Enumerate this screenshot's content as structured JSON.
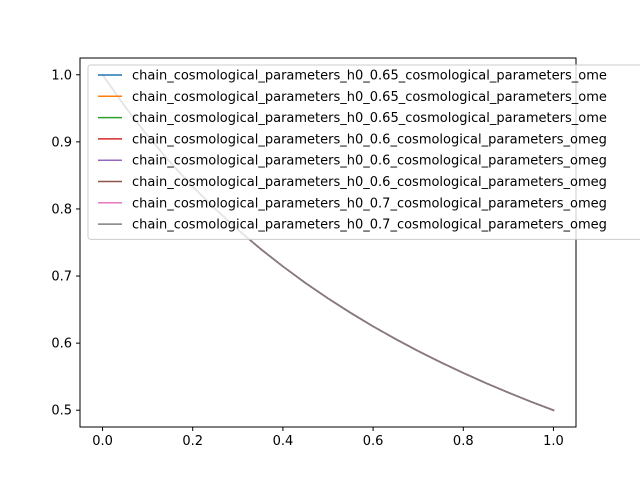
{
  "chart_data": {
    "type": "line",
    "title": "",
    "xlabel": "",
    "ylabel": "",
    "xlim": [
      -0.05,
      1.05
    ],
    "ylim": [
      0.475,
      1.025
    ],
    "grid": false,
    "legend_position": "upper right (overflowing right edge)",
    "x_ticks": [
      "0.0",
      "0.2",
      "0.4",
      "0.6",
      "0.8",
      "1.0"
    ],
    "y_ticks": [
      "0.5",
      "0.6",
      "0.7",
      "0.8",
      "0.9",
      "1.0"
    ],
    "x": [
      0.0,
      0.05,
      0.1,
      0.15,
      0.2,
      0.25,
      0.3,
      0.35,
      0.4,
      0.45,
      0.5,
      0.55,
      0.6,
      0.65,
      0.7,
      0.75,
      0.8,
      0.85,
      0.9,
      0.95,
      1.0
    ],
    "series": [
      {
        "name": "chain_cosmological_parameters_h0_0.65_cosmological_parameters_ome",
        "color": "#1f77b4",
        "values": [
          1.0,
          0.9524,
          0.9091,
          0.8696,
          0.8333,
          0.8,
          0.7692,
          0.7407,
          0.7143,
          0.6897,
          0.6667,
          0.6452,
          0.625,
          0.6061,
          0.5882,
          0.5714,
          0.5556,
          0.5405,
          0.5263,
          0.5128,
          0.5
        ]
      },
      {
        "name": "chain_cosmological_parameters_h0_0.65_cosmological_parameters_ome",
        "color": "#ff7f0e",
        "values": [
          1.0,
          0.9524,
          0.9091,
          0.8696,
          0.8333,
          0.8,
          0.7692,
          0.7407,
          0.7143,
          0.6897,
          0.6667,
          0.6452,
          0.625,
          0.6061,
          0.5882,
          0.5714,
          0.5556,
          0.5405,
          0.5263,
          0.5128,
          0.5
        ]
      },
      {
        "name": "chain_cosmological_parameters_h0_0.65_cosmological_parameters_ome",
        "color": "#2ca02c",
        "values": [
          1.0,
          0.9524,
          0.9091,
          0.8696,
          0.8333,
          0.8,
          0.7692,
          0.7407,
          0.7143,
          0.6897,
          0.6667,
          0.6452,
          0.625,
          0.6061,
          0.5882,
          0.5714,
          0.5556,
          0.5405,
          0.5263,
          0.5128,
          0.5
        ]
      },
      {
        "name": "chain_cosmological_parameters_h0_0.6_cosmological_parameters_omeg",
        "color": "#d62728",
        "values": [
          1.0,
          0.9524,
          0.9091,
          0.8696,
          0.8333,
          0.8,
          0.7692,
          0.7407,
          0.7143,
          0.6897,
          0.6667,
          0.6452,
          0.625,
          0.6061,
          0.5882,
          0.5714,
          0.5556,
          0.5405,
          0.5263,
          0.5128,
          0.5
        ]
      },
      {
        "name": "chain_cosmological_parameters_h0_0.6_cosmological_parameters_omeg",
        "color": "#9467bd",
        "values": [
          1.0,
          0.9524,
          0.9091,
          0.8696,
          0.8333,
          0.8,
          0.7692,
          0.7407,
          0.7143,
          0.6897,
          0.6667,
          0.6452,
          0.625,
          0.6061,
          0.5882,
          0.5714,
          0.5556,
          0.5405,
          0.5263,
          0.5128,
          0.5
        ]
      },
      {
        "name": "chain_cosmological_parameters_h0_0.6_cosmological_parameters_omeg",
        "color": "#8c564b",
        "values": [
          1.0,
          0.9524,
          0.9091,
          0.8696,
          0.8333,
          0.8,
          0.7692,
          0.7407,
          0.7143,
          0.6897,
          0.6667,
          0.6452,
          0.625,
          0.6061,
          0.5882,
          0.5714,
          0.5556,
          0.5405,
          0.5263,
          0.5128,
          0.5
        ]
      },
      {
        "name": "chain_cosmological_parameters_h0_0.7_cosmological_parameters_omeg",
        "color": "#e377c2",
        "values": [
          1.0,
          0.9524,
          0.9091,
          0.8696,
          0.8333,
          0.8,
          0.7692,
          0.7407,
          0.7143,
          0.6897,
          0.6667,
          0.6452,
          0.625,
          0.6061,
          0.5882,
          0.5714,
          0.5556,
          0.5405,
          0.5263,
          0.5128,
          0.5
        ]
      },
      {
        "name": "chain_cosmological_parameters_h0_0.7_cosmological_parameters_omeg",
        "color": "#7f7f7f",
        "values": [
          1.0,
          0.9524,
          0.9091,
          0.8696,
          0.8333,
          0.8,
          0.7692,
          0.7407,
          0.7143,
          0.6897,
          0.6667,
          0.6452,
          0.625,
          0.6061,
          0.5882,
          0.5714,
          0.5556,
          0.5405,
          0.5263,
          0.5128,
          0.5
        ]
      }
    ]
  }
}
